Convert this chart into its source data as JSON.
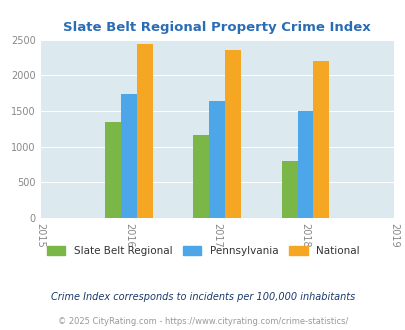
{
  "title": "Slate Belt Regional Property Crime Index",
  "years": [
    2015,
    2016,
    2017,
    2018,
    2019
  ],
  "bar_years": [
    2016,
    2017,
    2018
  ],
  "slate_belt": [
    1350,
    1165,
    795
  ],
  "pennsylvania": [
    1740,
    1645,
    1505
  ],
  "national": [
    2445,
    2355,
    2200
  ],
  "color_slate": "#7ab648",
  "color_penn": "#4da6e8",
  "color_national": "#f5a623",
  "ylim": [
    0,
    2500
  ],
  "yticks": [
    0,
    500,
    1000,
    1500,
    2000,
    2500
  ],
  "bg_color": "#dce9ef",
  "legend_labels": [
    "Slate Belt Regional",
    "Pennsylvania",
    "National"
  ],
  "footnote1": "Crime Index corresponds to incidents per 100,000 inhabitants",
  "footnote2": "© 2025 CityRating.com - https://www.cityrating.com/crime-statistics/"
}
